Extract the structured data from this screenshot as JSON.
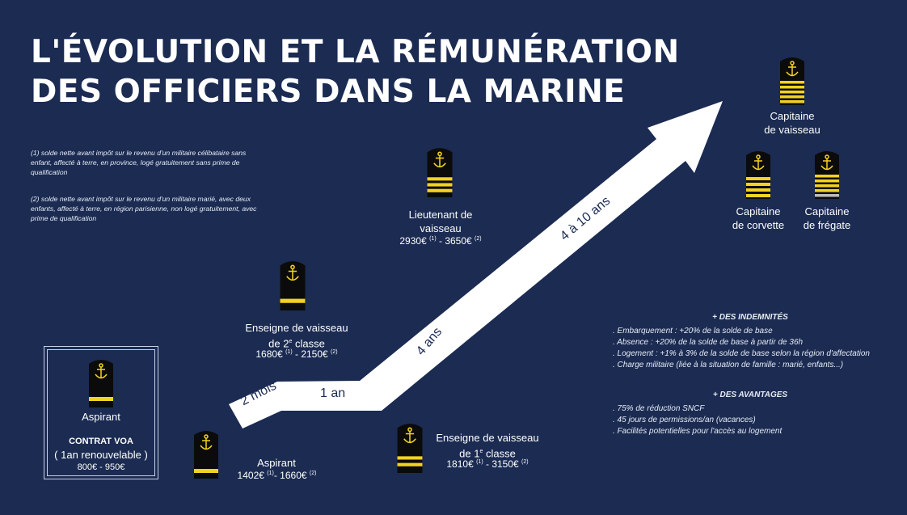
{
  "title": {
    "line1": "L'ÉVOLUTION ET LA RÉMUNÉRATION",
    "line2": "DES OFFICIERS DANS LA MARINE"
  },
  "notes": {
    "n1": "(1) solde nette avant impôt sur le revenu d'un militaire célibataire sans enfant, affecté à terre, en province, logé gratuitement sans prime de qualification",
    "n2": "(2) solde nette avant impôt sur le revenu d'un militaire marié, avec deux enfants, affecté à terre, en région parisienne, non logé gratuitement, avec prime de qualification"
  },
  "contract_box": {
    "rank": "Aspirant",
    "contract": "CONTRAT VOA",
    "duration": "( 1an renouvelable )",
    "salary": "800€ - 950€"
  },
  "ranks": {
    "aspirant": {
      "line1": "Aspirant",
      "s_low": "1402€",
      "s_high": "1660€"
    },
    "ev2": {
      "line1": "Enseigne de vaisseau",
      "line2": "de 2",
      "sup": "e",
      "line2_end": " classe",
      "s_low": "1680€",
      "s_high": "2150€"
    },
    "ev1": {
      "line1": "Enseigne de vaisseau",
      "line2": "de 1",
      "sup": "e",
      "line2_end": " classe",
      "s_low": "1810€",
      "s_high": "3150€"
    },
    "lv": {
      "line1": "Lieutenant de",
      "line2": "vaisseau",
      "s_low": "2930€",
      "s_high": "3650€"
    },
    "cv": {
      "line1": "Capitaine",
      "line2": "de vaisseau"
    },
    "cc": {
      "line1": "Capitaine",
      "line2": "de corvette"
    },
    "cf": {
      "line1": "Capitaine",
      "line2": "de frégate"
    }
  },
  "refs": {
    "r1": "(1)",
    "r2": "(2)"
  },
  "arrow": {
    "d1": "2 mois",
    "d2": "1 an",
    "d3": "4 ans",
    "d4": "4 à 10 ans"
  },
  "indemnites": {
    "heading": "+ DES INDEMNITÉS",
    "items": [
      ". Embarquement : +20% de la solde de base",
      ". Absence : +20% de la solde de base à partir de 36h",
      ". Logement : +1% à 3% de la solde de base selon la région d'affectation",
      ". Charge militaire (liée à la situation de famille : marié, enfants...)"
    ]
  },
  "avantages": {
    "heading": "+ DES AVANTAGES",
    "items": [
      ". 75% de réduction SNCF",
      ". 45 jours de permissions/an (vacances)",
      ". Facilités potentielles pour l'accès au logement"
    ]
  },
  "colors": {
    "background": "#1b2b52",
    "stripe": "#f2d321",
    "epaulette": "#0b0b0b",
    "arrow": "#ffffff"
  },
  "icons": {
    "epaulette": "epaulette-icon",
    "anchor": "anchor-icon"
  }
}
